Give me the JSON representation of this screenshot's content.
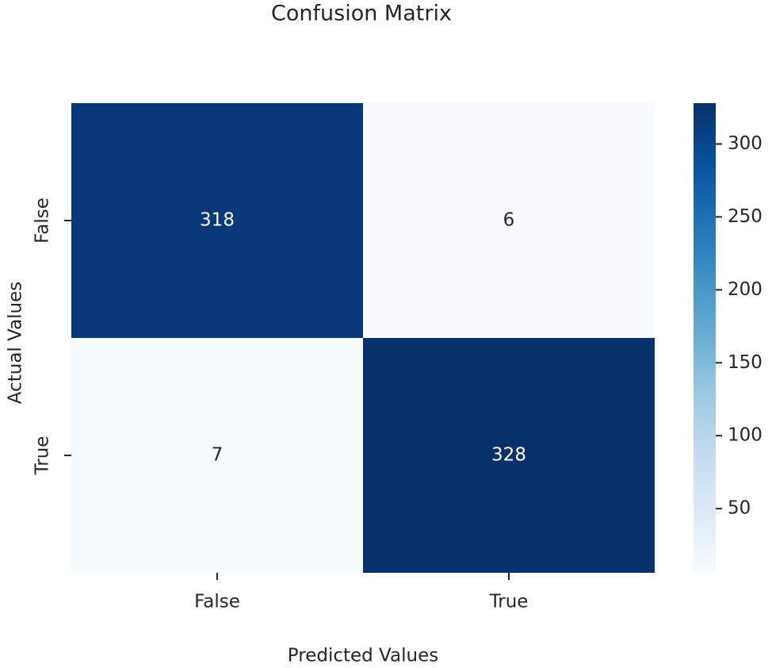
{
  "chart_data": {
    "type": "heatmap",
    "title": "Confusion Matrix",
    "xlabel": "Predicted Values",
    "ylabel": "Actual Values",
    "x_categories": [
      "False",
      "True"
    ],
    "y_categories": [
      "False",
      "True"
    ],
    "values": [
      [
        318,
        6
      ],
      [
        7,
        328
      ]
    ],
    "colormap": [
      "#f7fbff",
      "#deebf7",
      "#c6dbef",
      "#9ecae1",
      "#6baed6",
      "#4292c6",
      "#2171b5",
      "#08519c",
      "#08306b"
    ],
    "clim": [
      6,
      328
    ],
    "cticks": [
      50,
      100,
      150,
      200,
      250,
      300
    ]
  }
}
